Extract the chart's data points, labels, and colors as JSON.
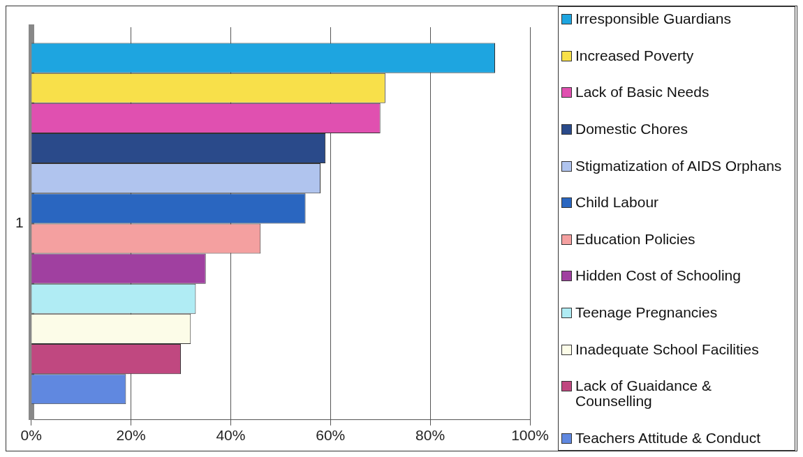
{
  "chart_data": {
    "type": "bar",
    "orientation": "horizontal",
    "categories": [
      "1"
    ],
    "series": [
      {
        "name": "Irresponsible Guardians",
        "color": "#1ea5e0",
        "values": [
          93
        ]
      },
      {
        "name": "Increased Poverty",
        "color": "#f8e04a",
        "values": [
          71
        ]
      },
      {
        "name": "Lack of Basic Needs",
        "color": "#e050b0",
        "values": [
          70
        ]
      },
      {
        "name": "Domestic Chores",
        "color": "#2a4a8a",
        "values": [
          59
        ]
      },
      {
        "name": "Stigmatization of AIDS Orphans",
        "color": "#b0c4ee",
        "values": [
          58
        ]
      },
      {
        "name": "Child Labour",
        "color": "#2a66c0",
        "values": [
          55
        ]
      },
      {
        "name": "Education Policies",
        "color": "#f4a0a0",
        "values": [
          46
        ]
      },
      {
        "name": "Hidden Cost of Schooling",
        "color": "#a040a0",
        "values": [
          35
        ]
      },
      {
        "name": "Teenage Pregnancies",
        "color": "#b0ecf4",
        "values": [
          33
        ]
      },
      {
        "name": "Inadequate School Facilities",
        "color": "#fcfce8",
        "values": [
          32
        ]
      },
      {
        "name": "Lack of Guaidance & Counselling",
        "color": "#c04880",
        "values": [
          30
        ]
      },
      {
        "name": "Teachers Attitude & Conduct",
        "color": "#6088e0",
        "values": [
          19
        ]
      }
    ],
    "xlim": [
      0,
      100
    ],
    "xticks": [
      {
        "value": 0,
        "label": "0%"
      },
      {
        "value": 20,
        "label": "20%"
      },
      {
        "value": 40,
        "label": "40%"
      },
      {
        "value": 60,
        "label": "60%"
      },
      {
        "value": 80,
        "label": "80%"
      },
      {
        "value": 100,
        "label": "100%"
      }
    ],
    "grid": "x",
    "legend": "right"
  }
}
